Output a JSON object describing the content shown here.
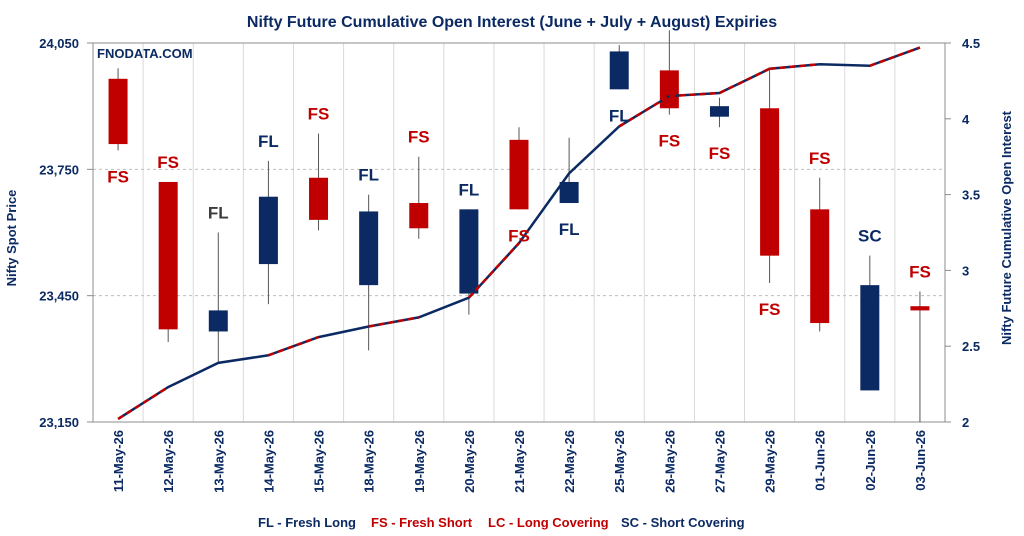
{
  "chart_data": {
    "type": "candlestick_line",
    "title": "Nifty Future Cumulative Open Interest (June + July + August) Expiries",
    "watermark": "FNODATA.COM",
    "ylabel": "Nifty Spot Price",
    "y2label": "Nifty Future Cumulative Open Interest",
    "ylim": [
      23150,
      24050
    ],
    "yticks": [
      23150,
      23450,
      23750,
      24050
    ],
    "ytick_labels": [
      "23,150",
      "23,450",
      "23,750",
      "24,050"
    ],
    "y2lim": [
      2,
      4.5
    ],
    "y2ticks": [
      2,
      2.5,
      3,
      3.5,
      4,
      4.5
    ],
    "y2tick_labels": [
      "2",
      "2.5",
      "3",
      "3.5",
      "4",
      "4.5"
    ],
    "categories": [
      "11-May-26",
      "12-May-26",
      "13-May-26",
      "14-May-26",
      "15-May-26",
      "18-May-26",
      "19-May-26",
      "20-May-26",
      "21-May-26",
      "22-May-26",
      "25-May-26",
      "26-May-26",
      "27-May-26",
      "29-May-26",
      "01-Jun-26",
      "02-Jun-26",
      "03-Jun-26"
    ],
    "candles": [
      {
        "open": 23810,
        "close": 23965,
        "high": 23990,
        "low": 23795,
        "color": "red"
      },
      {
        "open": 23370,
        "close": 23720,
        "high": 23720,
        "low": 23340,
        "color": "red"
      },
      {
        "open": 23365,
        "close": 23415,
        "high": 23600,
        "low": 23290,
        "color": "blue"
      },
      {
        "open": 23525,
        "close": 23685,
        "high": 23770,
        "low": 23430,
        "color": "blue"
      },
      {
        "open": 23630,
        "close": 23730,
        "high": 23835,
        "low": 23605,
        "color": "red"
      },
      {
        "open": 23475,
        "close": 23650,
        "high": 23690,
        "low": 23320,
        "color": "blue"
      },
      {
        "open": 23610,
        "close": 23670,
        "high": 23780,
        "low": 23585,
        "color": "red"
      },
      {
        "open": 23455,
        "close": 23655,
        "high": 23655,
        "low": 23405,
        "color": "blue"
      },
      {
        "open": 23655,
        "close": 23820,
        "high": 23850,
        "low": 23655,
        "color": "red"
      },
      {
        "open": 23670,
        "close": 23720,
        "high": 23825,
        "low": 23670,
        "color": "blue"
      },
      {
        "open": 23940,
        "close": 24030,
        "high": 24045,
        "low": 23940,
        "color": "blue"
      },
      {
        "open": 23895,
        "close": 23985,
        "high": 24080,
        "low": 23880,
        "color": "red"
      },
      {
        "open": 23875,
        "close": 23900,
        "high": 23920,
        "low": 23850,
        "color": "blue"
      },
      {
        "open": 23545,
        "close": 23895,
        "high": 23985,
        "low": 23480,
        "color": "red"
      },
      {
        "open": 23385,
        "close": 23655,
        "high": 23730,
        "low": 23365,
        "color": "red"
      },
      {
        "open": 23225,
        "close": 23475,
        "high": 23545,
        "low": 23225,
        "color": "blue"
      },
      {
        "open": 23415,
        "close": 23425,
        "high": 23460,
        "low": 23150,
        "color": "red"
      }
    ],
    "oi_line": [
      2.02,
      2.23,
      2.39,
      2.44,
      2.56,
      2.63,
      2.69,
      2.82,
      3.18,
      3.64,
      3.95,
      4.15,
      4.17,
      4.33,
      4.36,
      4.35,
      4.47
    ],
    "candle_tags": [
      {
        "label": "FS",
        "color": "red",
        "pos": "below"
      },
      {
        "label": "FS",
        "color": "red",
        "pos": "above"
      },
      {
        "label": "FL",
        "color": "gray",
        "pos": "above"
      },
      {
        "label": "FL",
        "color": "blue",
        "pos": "above"
      },
      {
        "label": "FS",
        "color": "red",
        "pos": "above"
      },
      {
        "label": "FL",
        "color": "blue",
        "pos": "above"
      },
      {
        "label": "FS",
        "color": "red",
        "pos": "above"
      },
      {
        "label": "FL",
        "color": "blue",
        "pos": "above"
      },
      {
        "label": "FS",
        "color": "red",
        "pos": "below"
      },
      {
        "label": "FL",
        "color": "blue",
        "pos": "below"
      },
      {
        "label": "FL",
        "color": "blue",
        "pos": "below"
      },
      {
        "label": "FS",
        "color": "red",
        "pos": "below"
      },
      {
        "label": "FS",
        "color": "red",
        "pos": "below"
      },
      {
        "label": "FS",
        "color": "red",
        "pos": "below"
      },
      {
        "label": "FS",
        "color": "red",
        "pos": "above"
      },
      {
        "label": "SC",
        "color": "blue",
        "pos": "above"
      },
      {
        "label": "FS",
        "color": "red",
        "pos": "above"
      }
    ],
    "legend": [
      {
        "label": "FL - Fresh Long",
        "color": "blue"
      },
      {
        "label": "FS - Fresh Short",
        "color": "red"
      },
      {
        "label": "LC - Long Covering",
        "color": "red"
      },
      {
        "label": "SC - Short Covering",
        "color": "blue"
      }
    ],
    "colors": {
      "red": "#c00000",
      "blue": "#0b2a63",
      "gray": "#3b3b3b",
      "grid": "#d9d9d9",
      "axis": "#8c8c8c"
    }
  }
}
